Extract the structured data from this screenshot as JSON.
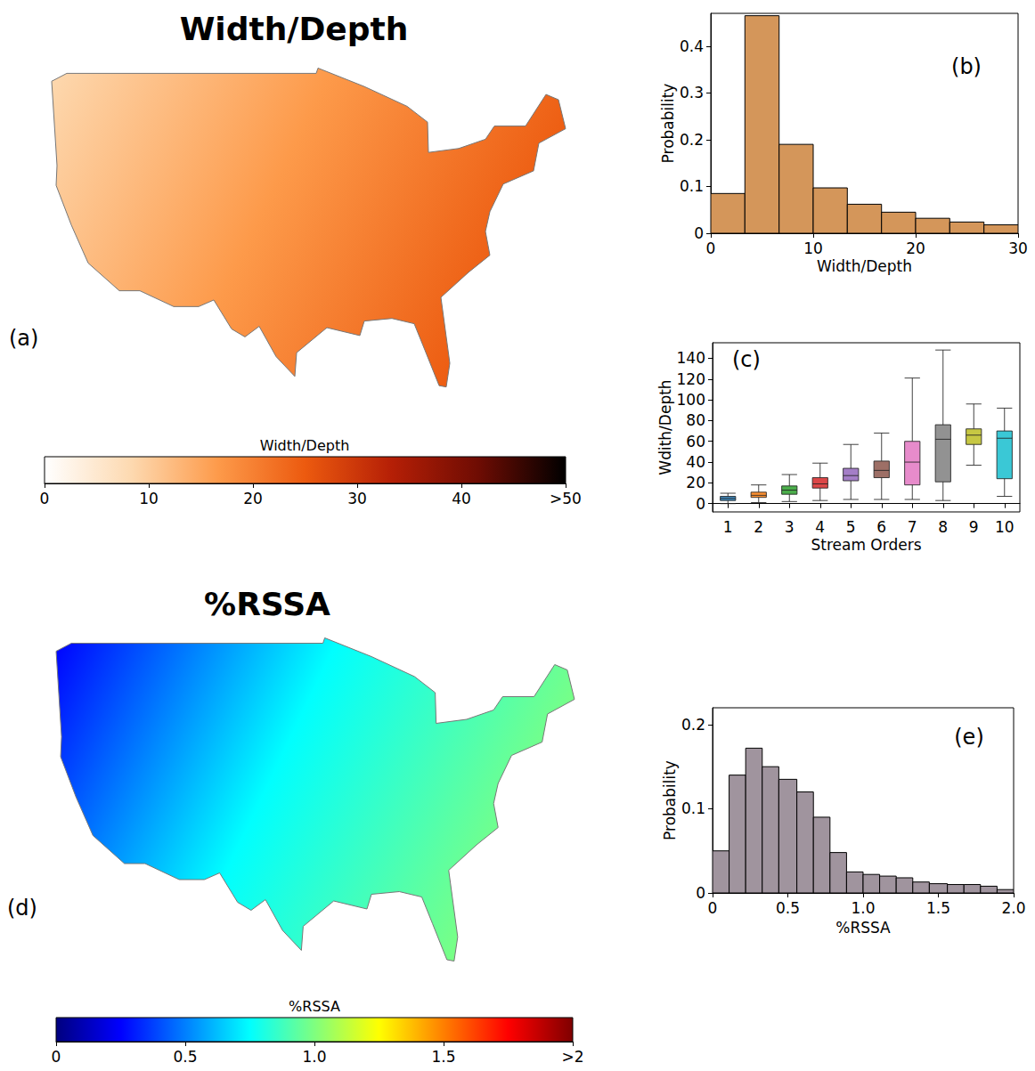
{
  "chart_data": [
    {
      "type": "map",
      "panel": "(a)",
      "title": "Width/Depth",
      "colorbar": {
        "label": "Width/Depth",
        "range": [
          0,
          50
        ],
        "ticks": [
          0,
          10,
          20,
          30,
          40,
          {
            "value": 50,
            "label": ">50"
          }
        ],
        "colors": [
          "#ffffff",
          "#fdd9b0",
          "#fd9a4a",
          "#ec5a0f",
          "#b51f06",
          "#6e0c03",
          "#000000"
        ]
      }
    },
    {
      "type": "histogram",
      "panel": "(b)",
      "xlabel": "Width/Depth",
      "ylabel": "Probability",
      "bins": [
        0,
        3.33,
        6.67,
        10,
        13.33,
        16.67,
        20,
        23.33,
        26.67,
        30
      ],
      "values": [
        0.085,
        0.465,
        0.19,
        0.097,
        0.062,
        0.045,
        0.032,
        0.024,
        0.018
      ],
      "color": "#d4965a",
      "xlim": [
        0,
        30
      ],
      "xticks": [
        0,
        10,
        20,
        30
      ],
      "ylim": [
        0,
        0.47
      ],
      "yticks": [
        0,
        0.1,
        0.2,
        0.3,
        0.4
      ]
    },
    {
      "type": "boxplot",
      "panel": "(c)",
      "xlabel": "Stream Orders",
      "ylabel": "Wdith/Depth",
      "categories": [
        "1",
        "2",
        "3",
        "4",
        "5",
        "6",
        "7",
        "8",
        "9",
        "10"
      ],
      "values": [
        [
          0,
          3,
          5,
          7,
          10
        ],
        [
          1,
          6,
          8,
          11,
          18
        ],
        [
          2,
          9,
          13,
          17,
          28
        ],
        [
          3,
          15,
          19,
          25,
          39
        ],
        [
          4,
          22,
          27,
          34,
          57
        ],
        [
          4,
          25,
          32,
          41,
          68
        ],
        [
          4,
          18,
          40,
          60,
          121
        ],
        [
          3,
          21,
          62,
          76,
          148
        ],
        [
          37,
          57,
          66,
          72,
          96
        ],
        [
          7,
          24,
          63,
          70,
          92
        ]
      ],
      "colors": [
        "#1f77b4",
        "#ff7f0e",
        "#2ca02c",
        "#d62728",
        "#9467bd",
        "#8c564b",
        "#e377c2",
        "#7f7f7f",
        "#bcbd22",
        "#17becf"
      ],
      "ylim": [
        -8,
        155
      ],
      "yticks": [
        0,
        20,
        40,
        60,
        80,
        100,
        120,
        140
      ]
    },
    {
      "type": "map",
      "panel": "(d)",
      "title": "%RSSA",
      "colorbar": {
        "label": "%RSSA",
        "range": [
          0,
          2
        ],
        "ticks": [
          0,
          0.5,
          {
            "value": 1,
            "label": "1.0"
          },
          1.5,
          {
            "value": 2,
            "label": ">2"
          }
        ],
        "colors": [
          "#00007f",
          "#0000ff",
          "#007fff",
          "#00ffff",
          "#7fff7f",
          "#ffff00",
          "#ff7f00",
          "#ff0000",
          "#7f0000"
        ]
      }
    },
    {
      "type": "histogram",
      "panel": "(e)",
      "xlabel": "%RSSA",
      "ylabel": "Probability",
      "bins": [
        0,
        0.11,
        0.22,
        0.33,
        0.44,
        0.56,
        0.67,
        0.78,
        0.89,
        1.0,
        1.11,
        1.22,
        1.33,
        1.44,
        1.56,
        1.67,
        1.78,
        1.89,
        2.0
      ],
      "values": [
        0.05,
        0.14,
        0.172,
        0.15,
        0.135,
        0.12,
        0.09,
        0.048,
        0.025,
        0.022,
        0.02,
        0.018,
        0.013,
        0.011,
        0.01,
        0.01,
        0.008,
        0.004
      ],
      "color": "#a0949e",
      "xlim": [
        0,
        2
      ],
      "xticks": [
        0,
        0.5,
        {
          "value": 1,
          "label": "1.0"
        },
        1.5,
        {
          "value": 2,
          "label": "2.0"
        }
      ],
      "ylim": [
        0,
        0.22
      ],
      "yticks": [
        0,
        0.1,
        0.2
      ]
    }
  ]
}
